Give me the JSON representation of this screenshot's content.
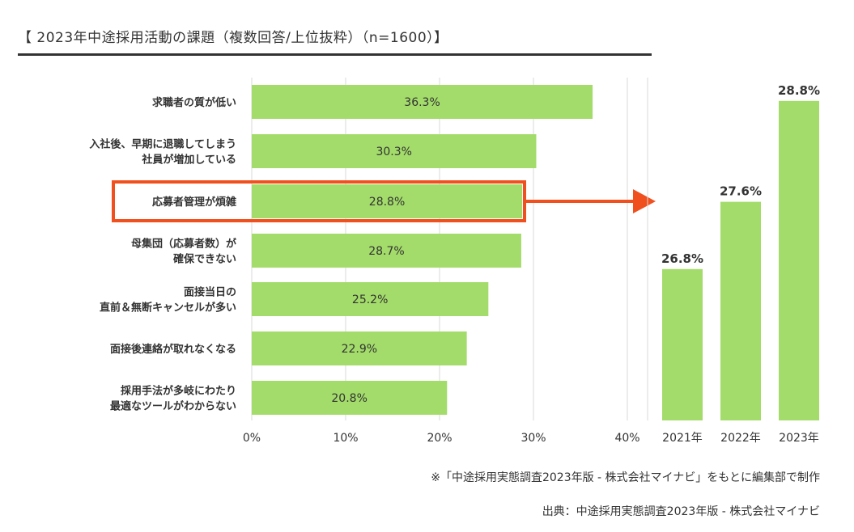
{
  "title": "【 2023年中途採用活動の課題（複数回答/上位抜粋）（n=1600）】",
  "note": "※「中途採用実態調査2023年版 - 株式会社マイナビ」をもとに編集部で制作",
  "source": "出典：中途採用実態調査2023年版 - 株式会社マイナビ",
  "colors": {
    "bar": "#a3dc6a",
    "highlight": "#f0501e",
    "text": "#333333",
    "grid": "#d8d8d8"
  },
  "chart_data": [
    {
      "type": "bar",
      "orientation": "horizontal",
      "categories": [
        [
          "求職者の質が低い"
        ],
        [
          "入社後、早期に退職してしまう",
          "社員が増加している"
        ],
        [
          "応募者管理が煩雑"
        ],
        [
          "母集団（応募者数）が",
          "確保できない"
        ],
        [
          "面接当日の",
          "直前＆無断キャンセルが多い"
        ],
        [
          "面接後連絡が取れなくなる"
        ],
        [
          "採用手法が多岐にわたり",
          "最適なツールがわからない"
        ]
      ],
      "values": [
        36.3,
        30.3,
        28.8,
        28.7,
        25.2,
        22.9,
        20.8
      ],
      "data_labels": [
        "36.3%",
        "30.3%",
        "28.8%",
        "28.7%",
        "25.2%",
        "22.9%",
        "20.8%"
      ],
      "highlighted_index": 2,
      "xlim": [
        0,
        40
      ],
      "x_ticks": [
        "0%",
        "10%",
        "20%",
        "30%",
        "40%"
      ],
      "grid": true
    },
    {
      "type": "bar",
      "categories": [
        "2021年",
        "2022年",
        "2023年"
      ],
      "values": [
        26.8,
        27.6,
        28.8
      ],
      "data_labels": [
        "26.8%",
        "27.6%",
        "28.8%"
      ],
      "ylim": [
        25,
        29.5
      ]
    }
  ]
}
